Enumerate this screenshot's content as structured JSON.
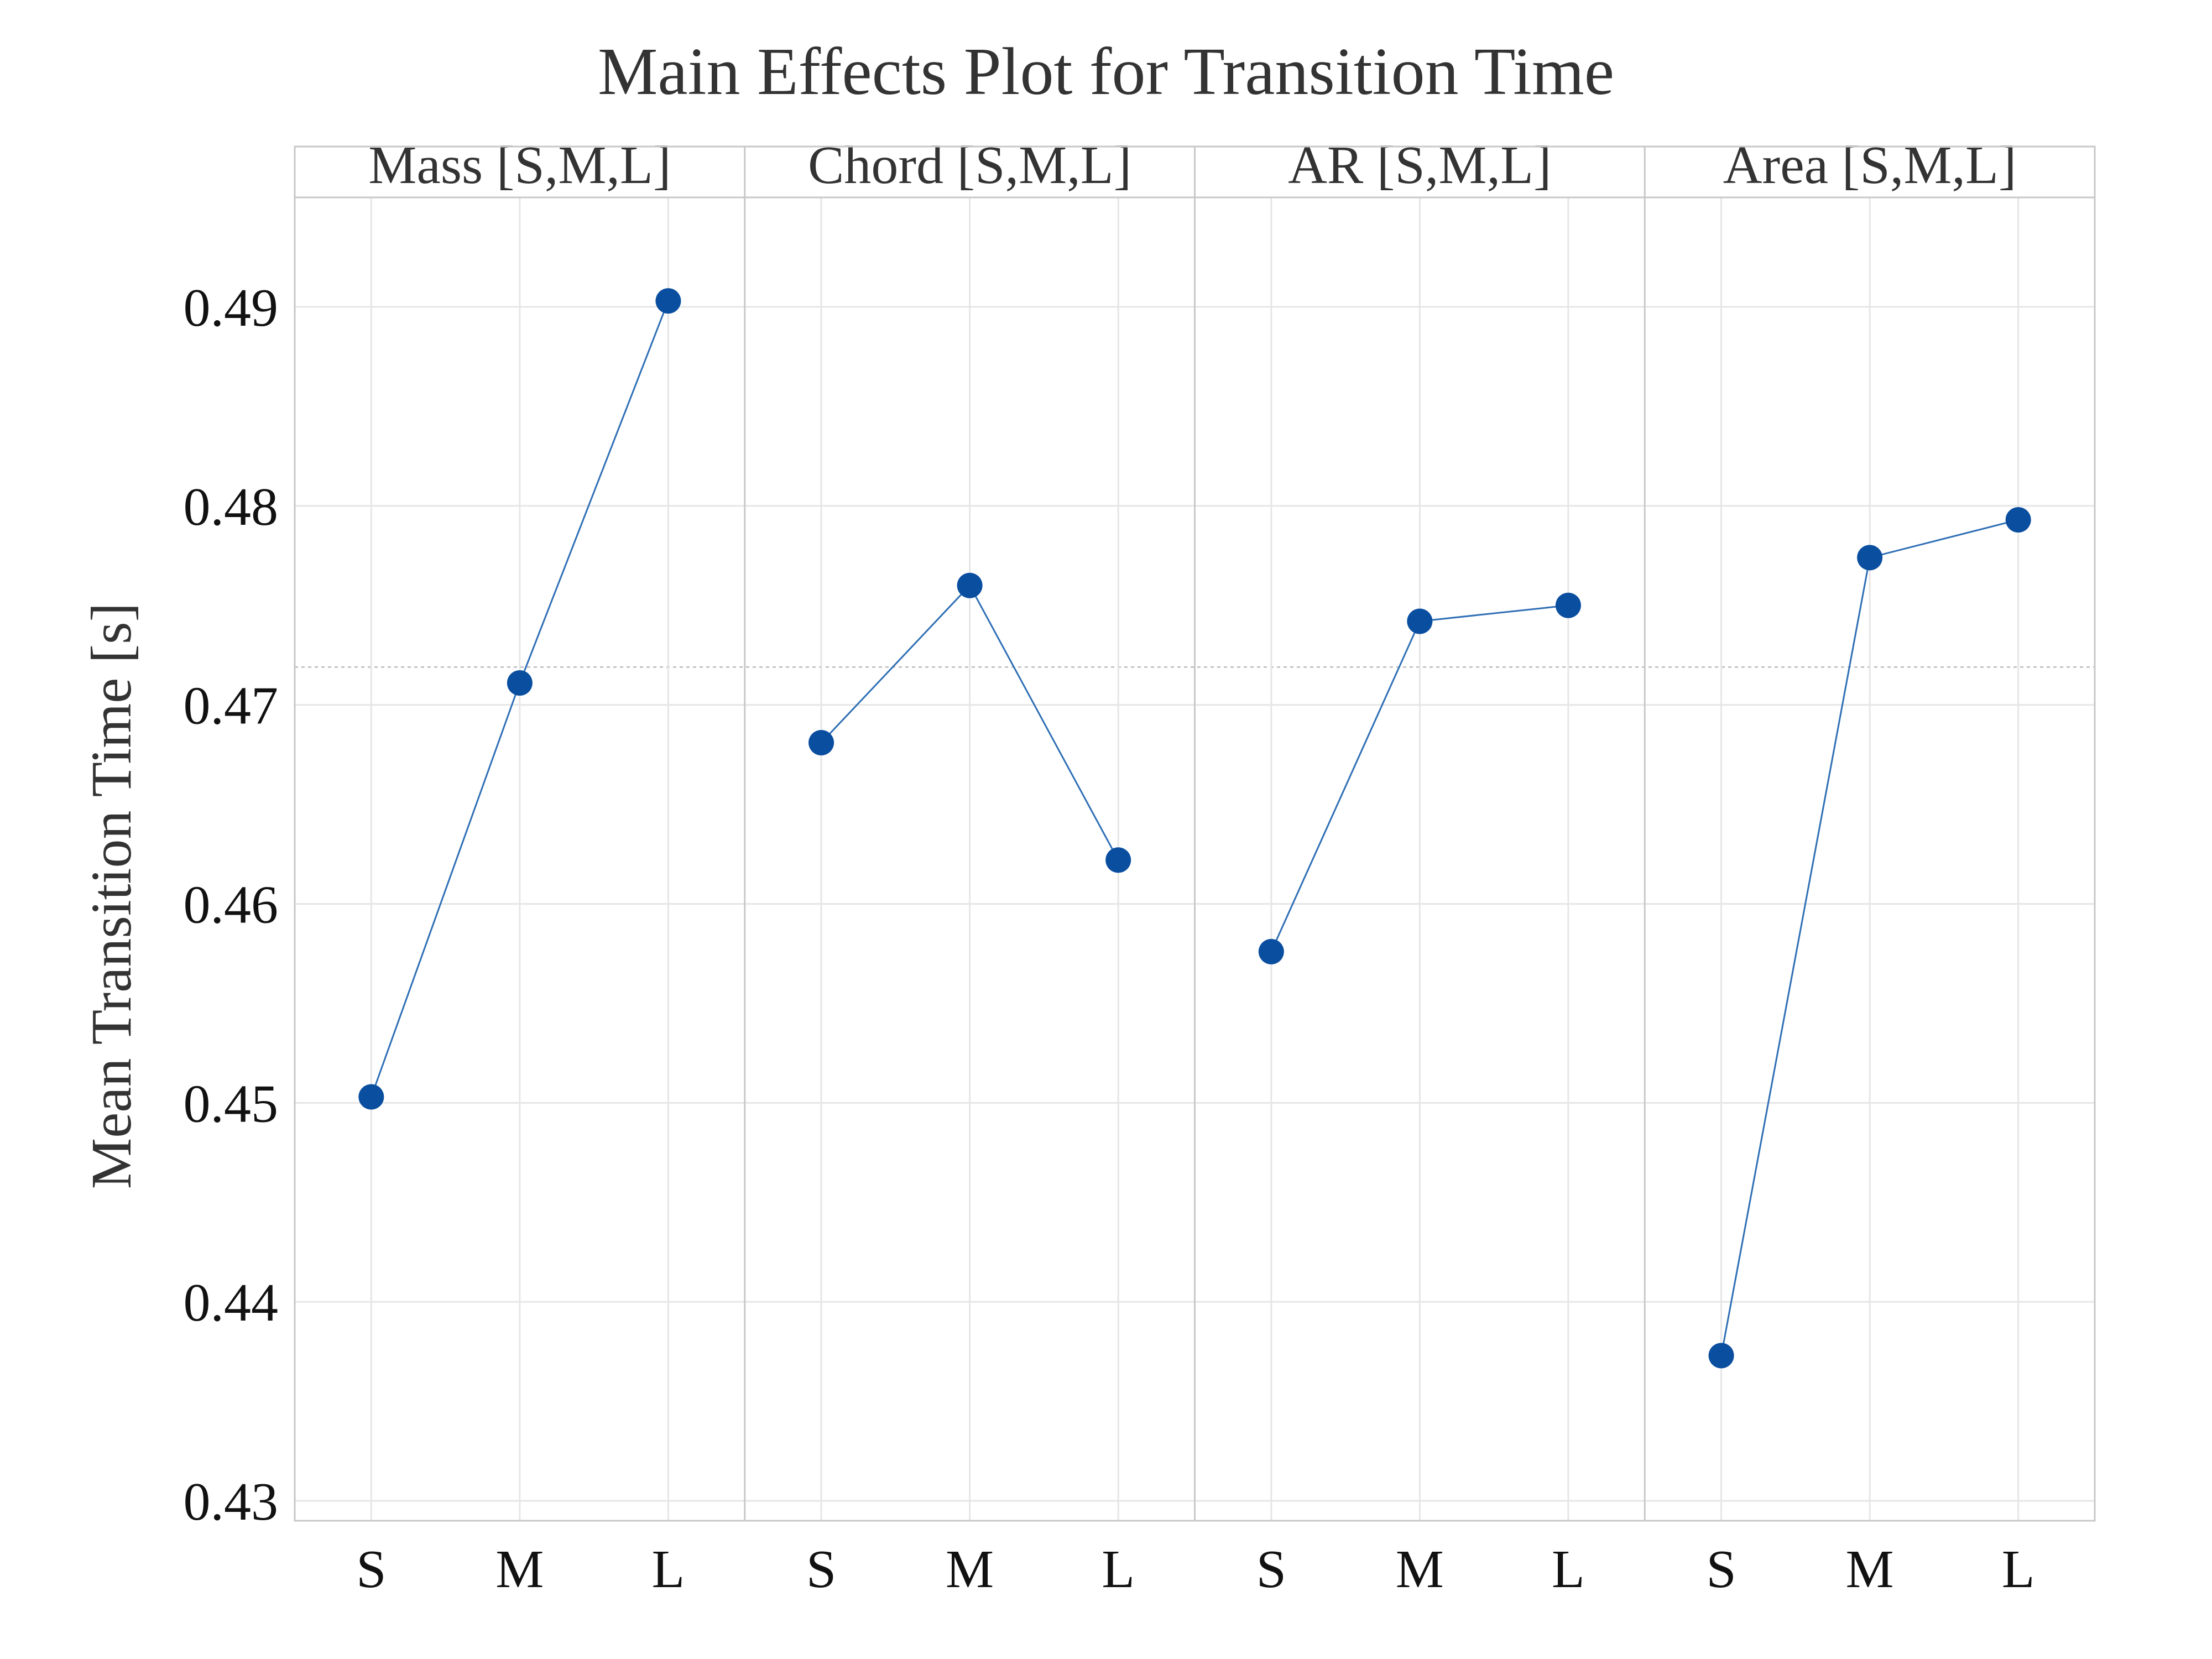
{
  "chart_data": {
    "type": "line",
    "title": "Main Effects Plot for Transition Time",
    "ylabel": "Mean Transition Time [s]",
    "xlabel": "",
    "ylim": [
      0.429,
      0.4955
    ],
    "yticks": [
      0.43,
      0.44,
      0.45,
      0.46,
      0.47,
      0.48,
      0.49
    ],
    "ytick_labels": [
      "0.43",
      "0.44",
      "0.45",
      "0.46",
      "0.47",
      "0.48",
      "0.49"
    ],
    "grid": true,
    "reference_line": 0.4719,
    "marker_color": "#0a4ea0",
    "line_color": "#2f6fb5",
    "categories": [
      "S",
      "M",
      "L"
    ],
    "panels": [
      {
        "label": "Mass [S,M,L]",
        "values": [
          0.4503,
          0.4711,
          0.4903
        ]
      },
      {
        "label": "Chord [S,M,L]",
        "values": [
          0.4681,
          0.476,
          0.4622
        ]
      },
      {
        "label": "AR [S,M,L]",
        "values": [
          0.4576,
          0.4742,
          0.475
        ]
      },
      {
        "label": "Area [S,M,L]",
        "values": [
          0.4373,
          0.4774,
          0.4793
        ]
      }
    ]
  }
}
